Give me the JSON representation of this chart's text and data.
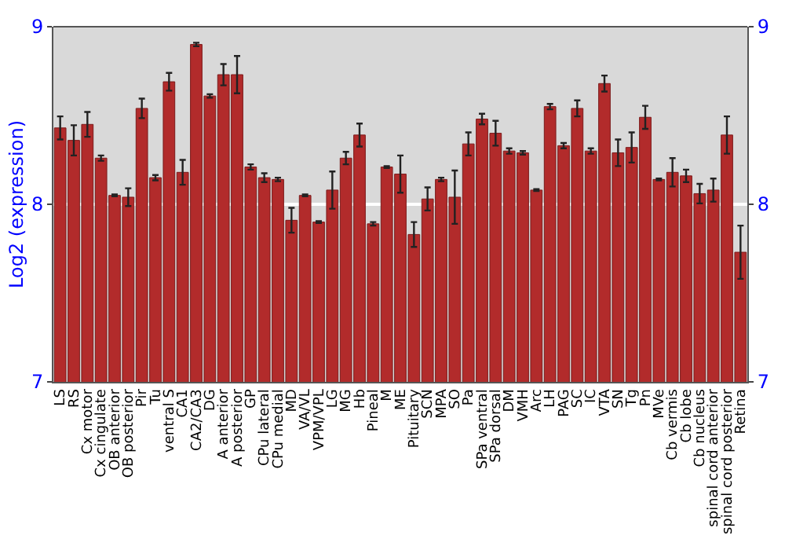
{
  "chart_data": {
    "type": "bar",
    "ylabel": "Log2 (expression)",
    "categories": [
      "LS",
      "RS",
      "Cx motor",
      "Cx cingulate",
      "OB anterior",
      "OB posterior",
      "Pir",
      "Tu",
      "ventral S",
      "CA1",
      "CA2/CA3",
      "DG",
      "A anterior",
      "A posterior",
      "GP",
      "CPu lateral",
      "CPu medial",
      "MD",
      "VA/VL",
      "VPM/VPL",
      "LG",
      "MG",
      "Hb",
      "Pineal",
      "M",
      "ME",
      "Pituitary",
      "SCN",
      "MPA",
      "SO",
      "Pa",
      "SPa ventral",
      "SPa dorsal",
      "DM",
      "VMH",
      "Arc",
      "LH",
      "PAG",
      "SC",
      "IC",
      "VTA",
      "SN",
      "Tg",
      "Pn",
      "MVe",
      "Cb vermis",
      "Cb lobe",
      "Cb nucleus",
      "spinal cord anterior",
      "spinal cord posterior",
      "Retina"
    ],
    "values": [
      8.43,
      8.36,
      8.45,
      8.26,
      8.05,
      8.04,
      8.54,
      8.15,
      8.69,
      8.18,
      8.9,
      8.61,
      8.73,
      8.73,
      8.21,
      8.15,
      8.14,
      7.91,
      8.05,
      7.9,
      8.08,
      8.26,
      8.39,
      7.89,
      8.21,
      8.17,
      7.83,
      8.03,
      8.14,
      8.04,
      8.34,
      8.48,
      8.4,
      8.3,
      8.29,
      8.08,
      8.55,
      8.33,
      8.54,
      8.3,
      8.68,
      8.29,
      8.32,
      8.49,
      8.14,
      8.18,
      8.16,
      8.06,
      8.08,
      8.39,
      7.73
    ],
    "errors": [
      0.065,
      0.085,
      0.07,
      0.015,
      0.005,
      0.05,
      0.055,
      0.015,
      0.05,
      0.07,
      0.01,
      0.01,
      0.06,
      0.105,
      0.015,
      0.025,
      0.01,
      0.07,
      0.005,
      0.005,
      0.105,
      0.035,
      0.065,
      0.01,
      0.005,
      0.105,
      0.07,
      0.065,
      0.01,
      0.15,
      0.065,
      0.03,
      0.07,
      0.015,
      0.01,
      0.005,
      0.015,
      0.015,
      0.045,
      0.015,
      0.045,
      0.075,
      0.085,
      0.065,
      0.005,
      0.08,
      0.035,
      0.055,
      0.065,
      0.105,
      0.15
    ],
    "color": "#b22b2b",
    "ylim": [
      7,
      9
    ],
    "yticks": [
      7,
      8,
      9
    ],
    "y2lim": [
      7,
      9
    ],
    "y2ticks": [
      7,
      8,
      9
    ],
    "grid": "y"
  }
}
